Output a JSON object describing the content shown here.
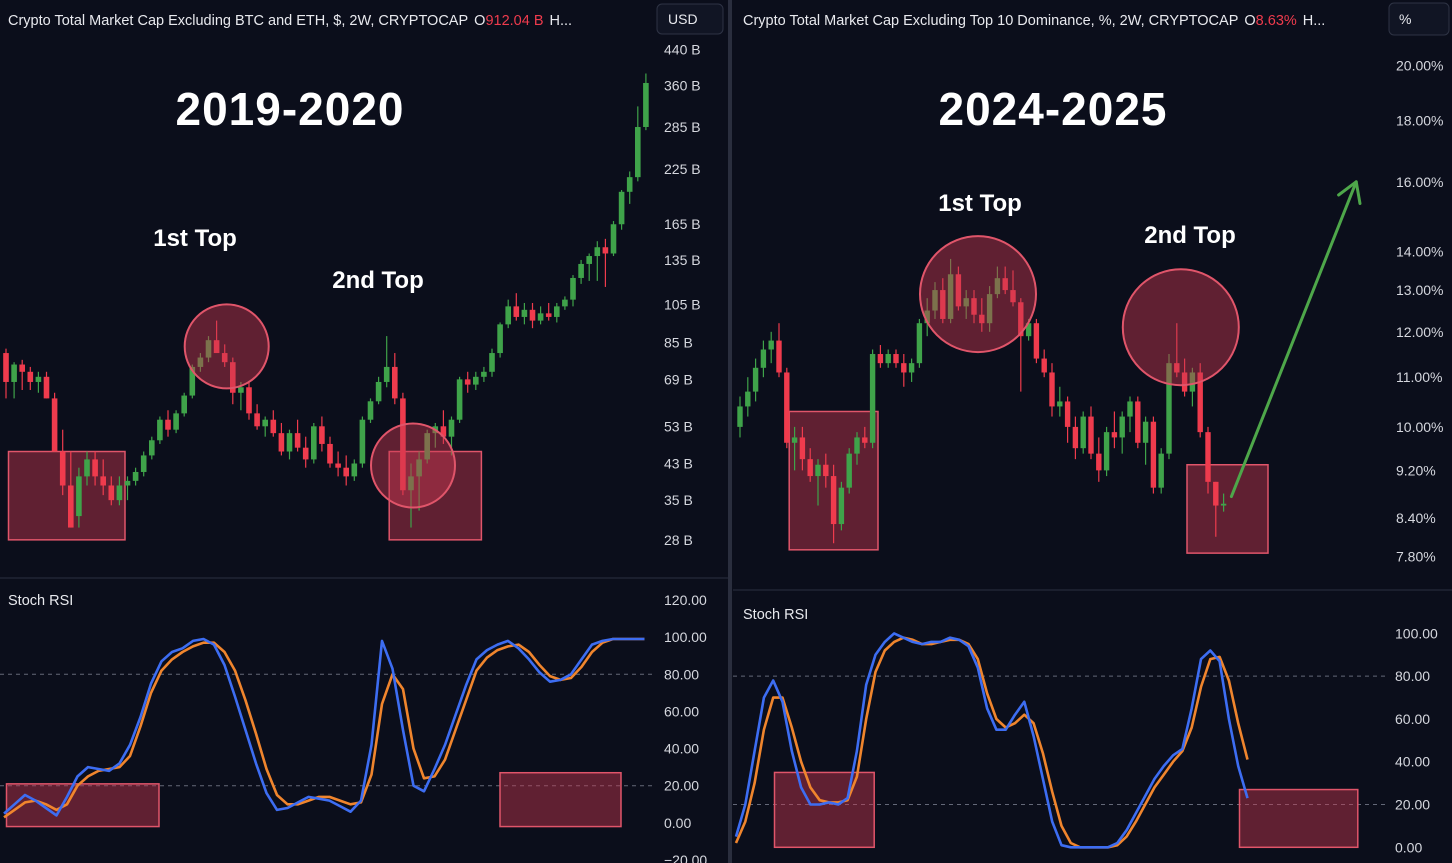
{
  "colors": {
    "background": "#0b0e1b",
    "up_candle": "#3fa34a",
    "down_candle": "#ef3b4d",
    "highlight_fill": "rgba(200,56,80,0.45)",
    "highlight_stroke": "#e0556a",
    "stoch_k": "#3d6df2",
    "stoch_d": "#f0852d",
    "arrow": "#4ea74a",
    "axis_text": "#d5d7de",
    "price_value": "#ef3b4d"
  },
  "left": {
    "header": "Crypto Total Market Cap Excluding BTC and ETH, $, 2W, CRYPTOCAP",
    "open_prefix": "O",
    "open_value": "912.04 B",
    "tail": "H...",
    "unit_button": "USD",
    "period_title": "2019-2020",
    "top1_label": "1st Top",
    "top2_label": "2nd Top",
    "price_ticks": [
      "440 B",
      "360 B",
      "285 B",
      "225 B",
      "165 B",
      "135 B",
      "105 B",
      "85 B",
      "69 B",
      "53 B",
      "43 B",
      "35 B",
      "28 B"
    ],
    "indicator_label": "Stoch RSI",
    "indicator_ticks": [
      "120.00",
      "100.00",
      "80.00",
      "60.00",
      "40.00",
      "20.00",
      "0.00",
      "−20.00"
    ]
  },
  "right": {
    "header": "Crypto Total Market Cap Excluding Top 10 Dominance, %, 2W, CRYPTOCAP",
    "open_prefix": "O",
    "open_value": "8.63%",
    "tail": "H...",
    "unit_button": "%",
    "period_title": "2024-2025",
    "top1_label": "1st Top",
    "top2_label": "2nd Top",
    "price_ticks": [
      "20.00%",
      "18.00%",
      "16.00%",
      "14.00%",
      "13.00%",
      "12.00%",
      "11.00%",
      "10.00%",
      "9.20%",
      "8.40%",
      "7.80%"
    ],
    "indicator_label": "Stoch RSI",
    "indicator_ticks": [
      "100.00",
      "80.00",
      "60.00",
      "40.00",
      "20.00",
      "0.00"
    ]
  },
  "chart_data": [
    {
      "type": "candlestick",
      "title": "Crypto Total Market Cap Excluding BTC and ETH, $, 2W, CRYPTOCAP",
      "period": "2019-2020",
      "y_scale": "log",
      "ylim_billion_usd": [
        25,
        470
      ],
      "unit": "B USD",
      "candles_ohlc": [
        [
          80,
          82,
          62,
          68
        ],
        [
          68,
          76,
          62,
          75
        ],
        [
          75,
          77,
          65,
          72
        ],
        [
          72,
          74,
          65,
          68
        ],
        [
          68,
          72,
          64,
          70
        ],
        [
          70,
          72,
          62,
          62
        ],
        [
          62,
          64,
          46,
          46
        ],
        [
          46,
          52,
          36,
          38
        ],
        [
          38,
          46,
          30,
          30
        ],
        [
          32,
          42,
          30,
          40
        ],
        [
          40,
          46,
          38,
          44
        ],
        [
          44,
          46,
          38,
          40
        ],
        [
          40,
          44,
          36,
          38
        ],
        [
          38,
          40,
          34,
          35
        ],
        [
          35,
          40,
          34,
          38
        ],
        [
          38,
          40,
          35,
          39
        ],
        [
          39,
          42,
          38,
          41
        ],
        [
          41,
          46,
          40,
          45
        ],
        [
          45,
          50,
          44,
          49
        ],
        [
          49,
          56,
          48,
          55
        ],
        [
          55,
          58,
          50,
          52
        ],
        [
          52,
          58,
          51,
          57
        ],
        [
          57,
          64,
          56,
          63
        ],
        [
          63,
          75,
          62,
          74
        ],
        [
          74,
          80,
          72,
          78
        ],
        [
          78,
          88,
          76,
          86
        ],
        [
          86,
          96,
          82,
          80
        ],
        [
          80,
          84,
          74,
          76
        ],
        [
          76,
          78,
          60,
          64
        ],
        [
          64,
          68,
          58,
          66
        ],
        [
          66,
          68,
          55,
          57
        ],
        [
          57,
          60,
          52,
          53
        ],
        [
          53,
          56,
          50,
          55
        ],
        [
          55,
          58,
          50,
          51
        ],
        [
          51,
          54,
          45,
          46
        ],
        [
          46,
          52,
          44,
          51
        ],
        [
          51,
          55,
          46,
          47
        ],
        [
          47,
          50,
          42,
          44
        ],
        [
          44,
          54,
          43,
          53
        ],
        [
          53,
          56,
          46,
          48
        ],
        [
          48,
          50,
          42,
          43
        ],
        [
          43,
          46,
          40,
          42
        ],
        [
          42,
          45,
          38,
          40
        ],
        [
          40,
          44,
          39,
          43
        ],
        [
          43,
          56,
          42,
          55
        ],
        [
          55,
          62,
          54,
          61
        ],
        [
          61,
          70,
          60,
          68
        ],
        [
          68,
          88,
          66,
          74
        ],
        [
          74,
          80,
          60,
          62
        ],
        [
          62,
          64,
          36,
          37
        ],
        [
          37,
          43,
          30,
          40
        ],
        [
          40,
          46,
          33,
          44
        ],
        [
          44,
          52,
          43,
          51
        ],
        [
          51,
          54,
          47,
          53
        ],
        [
          53,
          58,
          48,
          50
        ],
        [
          50,
          56,
          45,
          55
        ],
        [
          55,
          70,
          54,
          69
        ],
        [
          69,
          72,
          64,
          67
        ],
        [
          67,
          72,
          65,
          70
        ],
        [
          70,
          74,
          68,
          72
        ],
        [
          72,
          82,
          70,
          80
        ],
        [
          80,
          95,
          78,
          94
        ],
        [
          94,
          108,
          92,
          104
        ],
        [
          104,
          112,
          96,
          98
        ],
        [
          98,
          106,
          94,
          102
        ],
        [
          102,
          106,
          92,
          96
        ],
        [
          96,
          104,
          94,
          100
        ],
        [
          100,
          106,
          96,
          98
        ],
        [
          98,
          106,
          95,
          104
        ],
        [
          104,
          110,
          102,
          108
        ],
        [
          108,
          124,
          104,
          122
        ],
        [
          122,
          135,
          118,
          132
        ],
        [
          132,
          140,
          120,
          138
        ],
        [
          138,
          150,
          120,
          145
        ],
        [
          145,
          152,
          116,
          140
        ],
        [
          140,
          168,
          138,
          165
        ],
        [
          165,
          200,
          160,
          198
        ],
        [
          198,
          222,
          185,
          215
        ],
        [
          215,
          320,
          210,
          285
        ],
        [
          285,
          385,
          280,
          365
        ]
      ],
      "highlight_boxes_billion_usd": [
        {
          "from_bar": 1,
          "to_bar": 14,
          "high": 46,
          "low": 28
        },
        {
          "from_bar": 48,
          "to_bar": 58,
          "high": 46,
          "low": 28
        }
      ],
      "circled_tops_bar_index": [
        27,
        50
      ],
      "indicator": {
        "name": "Stoch RSI",
        "ylim": [
          -20,
          120
        ],
        "bands": [
          20,
          80
        ],
        "k_blue": [
          5,
          10,
          15,
          12,
          8,
          4,
          14,
          25,
          30,
          29,
          28,
          32,
          42,
          57,
          75,
          87,
          92,
          94,
          98,
          99,
          96,
          85,
          68,
          50,
          32,
          16,
          7,
          8,
          11,
          14,
          13,
          12,
          9,
          6,
          12,
          42,
          98,
          83,
          50,
          20,
          17,
          29,
          42,
          58,
          74,
          88,
          93,
          96,
          98,
          94,
          88,
          81,
          76,
          77,
          80,
          88,
          96,
          98,
          99,
          99,
          99,
          99
        ],
        "d_orange": [
          3,
          7,
          11,
          12,
          10,
          7,
          10,
          20,
          25,
          28,
          29,
          30,
          36,
          52,
          70,
          82,
          88,
          92,
          95,
          97,
          97,
          92,
          82,
          66,
          48,
          29,
          15,
          10,
          10,
          12,
          14,
          14,
          12,
          10,
          11,
          26,
          64,
          80,
          72,
          40,
          24,
          25,
          34,
          50,
          66,
          82,
          89,
          93,
          95,
          96,
          92,
          85,
          79,
          77,
          78,
          84,
          92,
          97,
          99,
          99,
          99,
          99
        ],
        "highlight_boxes": [
          {
            "from_bar": 1,
            "to_bar": 14,
            "top": 21,
            "bottom": -2
          },
          {
            "from_bar": 48,
            "to_bar": 58,
            "top": 27,
            "bottom": -2
          }
        ]
      }
    },
    {
      "type": "candlestick",
      "title": "Crypto Total Market Cap Excluding Top 10 Dominance, %, 2W, CRYPTOCAP",
      "period": "2024-2025",
      "y_scale": "log",
      "ylim_percent": [
        7.6,
        21
      ],
      "unit": "%",
      "candles_ohlc": [
        [
          10.0,
          10.6,
          9.8,
          10.4
        ],
        [
          10.4,
          11.0,
          10.2,
          10.7
        ],
        [
          10.7,
          11.4,
          10.5,
          11.2
        ],
        [
          11.2,
          11.8,
          11.0,
          11.6
        ],
        [
          11.6,
          12.0,
          11.3,
          11.8
        ],
        [
          11.8,
          12.2,
          11.0,
          11.1
        ],
        [
          11.1,
          11.2,
          9.6,
          9.7
        ],
        [
          9.7,
          10.0,
          9.2,
          9.8
        ],
        [
          9.8,
          10.0,
          9.2,
          9.4
        ],
        [
          9.4,
          9.6,
          9.0,
          9.1
        ],
        [
          9.1,
          9.4,
          8.6,
          9.3
        ],
        [
          9.3,
          9.5,
          8.9,
          9.1
        ],
        [
          9.1,
          9.3,
          8.0,
          8.3
        ],
        [
          8.3,
          9.0,
          8.2,
          8.9
        ],
        [
          8.9,
          9.6,
          8.8,
          9.5
        ],
        [
          9.5,
          9.9,
          9.3,
          9.8
        ],
        [
          9.8,
          10.0,
          9.6,
          9.7
        ],
        [
          9.7,
          11.6,
          9.6,
          11.5
        ],
        [
          11.5,
          11.7,
          11.2,
          11.3
        ],
        [
          11.3,
          11.6,
          11.2,
          11.5
        ],
        [
          11.5,
          11.6,
          11.2,
          11.3
        ],
        [
          11.3,
          11.5,
          10.8,
          11.1
        ],
        [
          11.1,
          11.4,
          10.9,
          11.3
        ],
        [
          11.3,
          12.3,
          11.2,
          12.2
        ],
        [
          12.2,
          12.8,
          11.9,
          12.5
        ],
        [
          12.5,
          13.2,
          12.3,
          13.0
        ],
        [
          13.0,
          13.3,
          12.2,
          12.3
        ],
        [
          12.3,
          13.8,
          12.2,
          13.4
        ],
        [
          13.4,
          13.6,
          12.5,
          12.6
        ],
        [
          12.6,
          13.0,
          12.3,
          12.8
        ],
        [
          12.8,
          13.0,
          12.2,
          12.4
        ],
        [
          12.4,
          12.8,
          12.0,
          12.2
        ],
        [
          12.2,
          13.1,
          12.0,
          12.9
        ],
        [
          12.9,
          13.6,
          12.8,
          13.3
        ],
        [
          13.3,
          13.6,
          12.9,
          13.0
        ],
        [
          13.0,
          13.5,
          12.6,
          12.7
        ],
        [
          12.7,
          12.8,
          10.7,
          11.9
        ],
        [
          11.9,
          12.3,
          11.8,
          12.2
        ],
        [
          12.2,
          12.3,
          11.3,
          11.4
        ],
        [
          11.4,
          11.6,
          11.0,
          11.1
        ],
        [
          11.1,
          11.3,
          10.2,
          10.4
        ],
        [
          10.4,
          10.8,
          10.2,
          10.5
        ],
        [
          10.5,
          10.6,
          9.7,
          10.0
        ],
        [
          10.0,
          10.2,
          9.4,
          9.6
        ],
        [
          9.6,
          10.3,
          9.5,
          10.2
        ],
        [
          10.2,
          10.4,
          9.4,
          9.5
        ],
        [
          9.5,
          9.8,
          9.0,
          9.2
        ],
        [
          9.2,
          10.0,
          9.1,
          9.9
        ],
        [
          9.9,
          10.3,
          9.6,
          9.8
        ],
        [
          9.8,
          10.3,
          9.5,
          10.2
        ],
        [
          10.2,
          10.6,
          9.9,
          10.5
        ],
        [
          10.5,
          10.6,
          9.6,
          9.7
        ],
        [
          9.7,
          10.2,
          9.3,
          10.1
        ],
        [
          10.1,
          10.2,
          8.8,
          8.9
        ],
        [
          8.9,
          9.6,
          8.8,
          9.5
        ],
        [
          9.5,
          11.5,
          9.4,
          11.3
        ],
        [
          11.3,
          12.2,
          11.0,
          11.1
        ],
        [
          11.1,
          11.4,
          10.6,
          10.7
        ],
        [
          10.7,
          11.2,
          10.4,
          11.1
        ],
        [
          11.1,
          11.3,
          9.8,
          9.9
        ],
        [
          9.9,
          10.0,
          8.8,
          9.0
        ],
        [
          9.0,
          9.0,
          8.1,
          8.6
        ],
        [
          8.6,
          8.8,
          8.5,
          8.63
        ]
      ],
      "highlight_boxes_percent": [
        {
          "from_bar": 7,
          "to_bar": 17,
          "high": 10.3,
          "low": 7.9
        },
        {
          "from_bar": 58,
          "to_bar": 67,
          "high": 9.3,
          "low": 7.85
        }
      ],
      "circled_tops_bar_index": [
        30,
        56
      ],
      "projection_arrow_percent": {
        "from_bar": 63,
        "from_value": 8.75,
        "to_bar": 79,
        "to_value": 16.0
      },
      "indicator": {
        "name": "Stoch RSI",
        "ylim": [
          -5,
          110
        ],
        "bands": [
          20,
          80
        ],
        "k_blue": [
          5,
          20,
          45,
          70,
          78,
          68,
          45,
          28,
          20,
          20,
          21,
          20,
          23,
          45,
          76,
          90,
          96,
          100,
          98,
          96,
          95,
          96,
          96,
          98,
          97,
          94,
          84,
          65,
          55,
          55,
          62,
          68,
          52,
          32,
          12,
          1,
          0,
          0,
          0,
          0,
          0,
          2,
          8,
          16,
          24,
          32,
          38,
          43,
          46,
          65,
          88,
          92,
          87,
          60,
          38,
          23
        ],
        "d_orange": [
          2,
          12,
          30,
          55,
          70,
          70,
          56,
          40,
          28,
          22,
          21,
          21,
          22,
          33,
          60,
          82,
          92,
          96,
          98,
          97,
          95,
          95,
          96,
          97,
          97,
          95,
          88,
          72,
          60,
          56,
          58,
          62,
          58,
          44,
          26,
          10,
          2,
          0,
          0,
          0,
          0,
          1,
          5,
          12,
          20,
          28,
          34,
          40,
          45,
          56,
          75,
          88,
          89,
          78,
          58,
          41
        ],
        "highlight_boxes": [
          {
            "from_bar": 5,
            "to_bar": 14,
            "top": 35,
            "bottom": 0
          },
          {
            "from_bar": 55,
            "to_bar": 66,
            "top": 27,
            "bottom": 0
          }
        ]
      }
    }
  ]
}
